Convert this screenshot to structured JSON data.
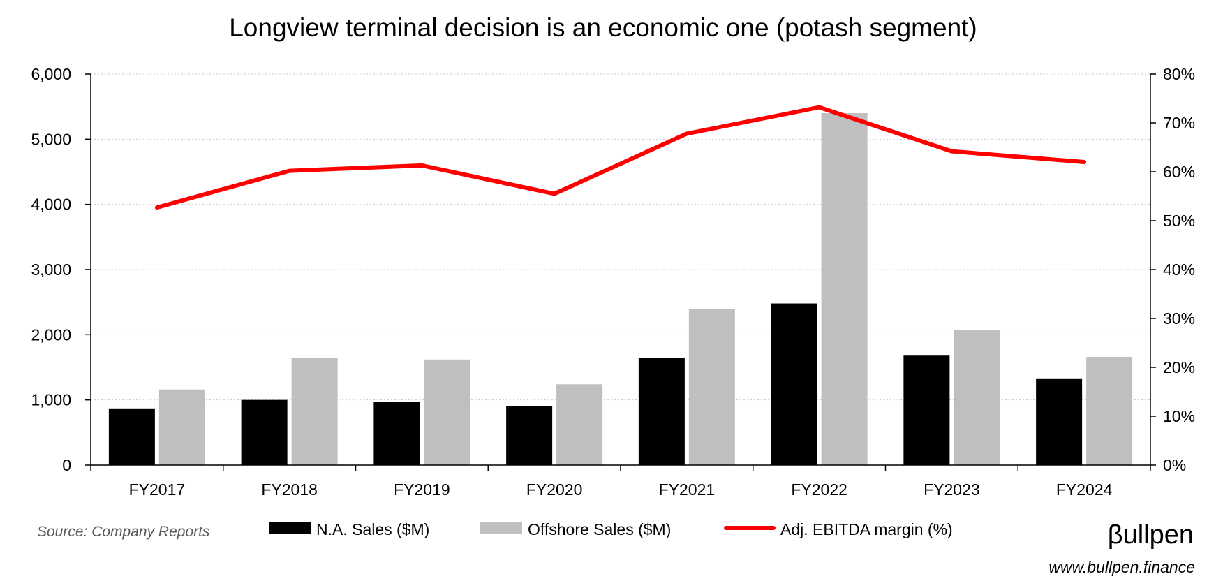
{
  "chart_data": {
    "type": "bar",
    "title": "Longview terminal decision is an economic one (potash segment)",
    "categories": [
      "FY2017",
      "FY2018",
      "FY2019",
      "FY2020",
      "FY2021",
      "FY2022",
      "FY2023",
      "FY2024"
    ],
    "series": [
      {
        "name": "N.A. Sales ($M)",
        "type": "bar",
        "axis": "left",
        "color": "#000000",
        "values": [
          870,
          1000,
          975,
          900,
          1640,
          2480,
          1680,
          1320
        ]
      },
      {
        "name": "Offshore Sales ($M)",
        "type": "bar",
        "axis": "left",
        "color": "#bfbfbf",
        "values": [
          1160,
          1650,
          1620,
          1240,
          2400,
          5400,
          2070,
          1660
        ]
      },
      {
        "name": "Adj. EBITDA margin (%)",
        "type": "line",
        "axis": "right",
        "color": "#ff0000",
        "values": [
          52.7,
          60.2,
          61.3,
          55.5,
          67.8,
          73.2,
          64.2,
          62.0
        ]
      }
    ],
    "y_left": {
      "min": 0,
      "max": 6000,
      "ticks": [
        0,
        1000,
        2000,
        3000,
        4000,
        5000,
        6000
      ],
      "tick_labels": [
        "0",
        "1,000",
        "2,000",
        "3,000",
        "4,000",
        "5,000",
        "6,000"
      ]
    },
    "y_right": {
      "min": 0,
      "max": 80,
      "ticks": [
        0,
        10,
        20,
        30,
        40,
        50,
        60,
        70,
        80
      ],
      "tick_labels": [
        "0%",
        "10%",
        "20%",
        "30%",
        "40%",
        "50%",
        "60%",
        "70%",
        "80%"
      ]
    },
    "grid": true,
    "legend_position": "bottom",
    "xlabel": "",
    "ylabel": ""
  },
  "footer": {
    "source": "Source: Company Reports",
    "brand": "βullpen",
    "url": "www.bullpen.finance"
  }
}
